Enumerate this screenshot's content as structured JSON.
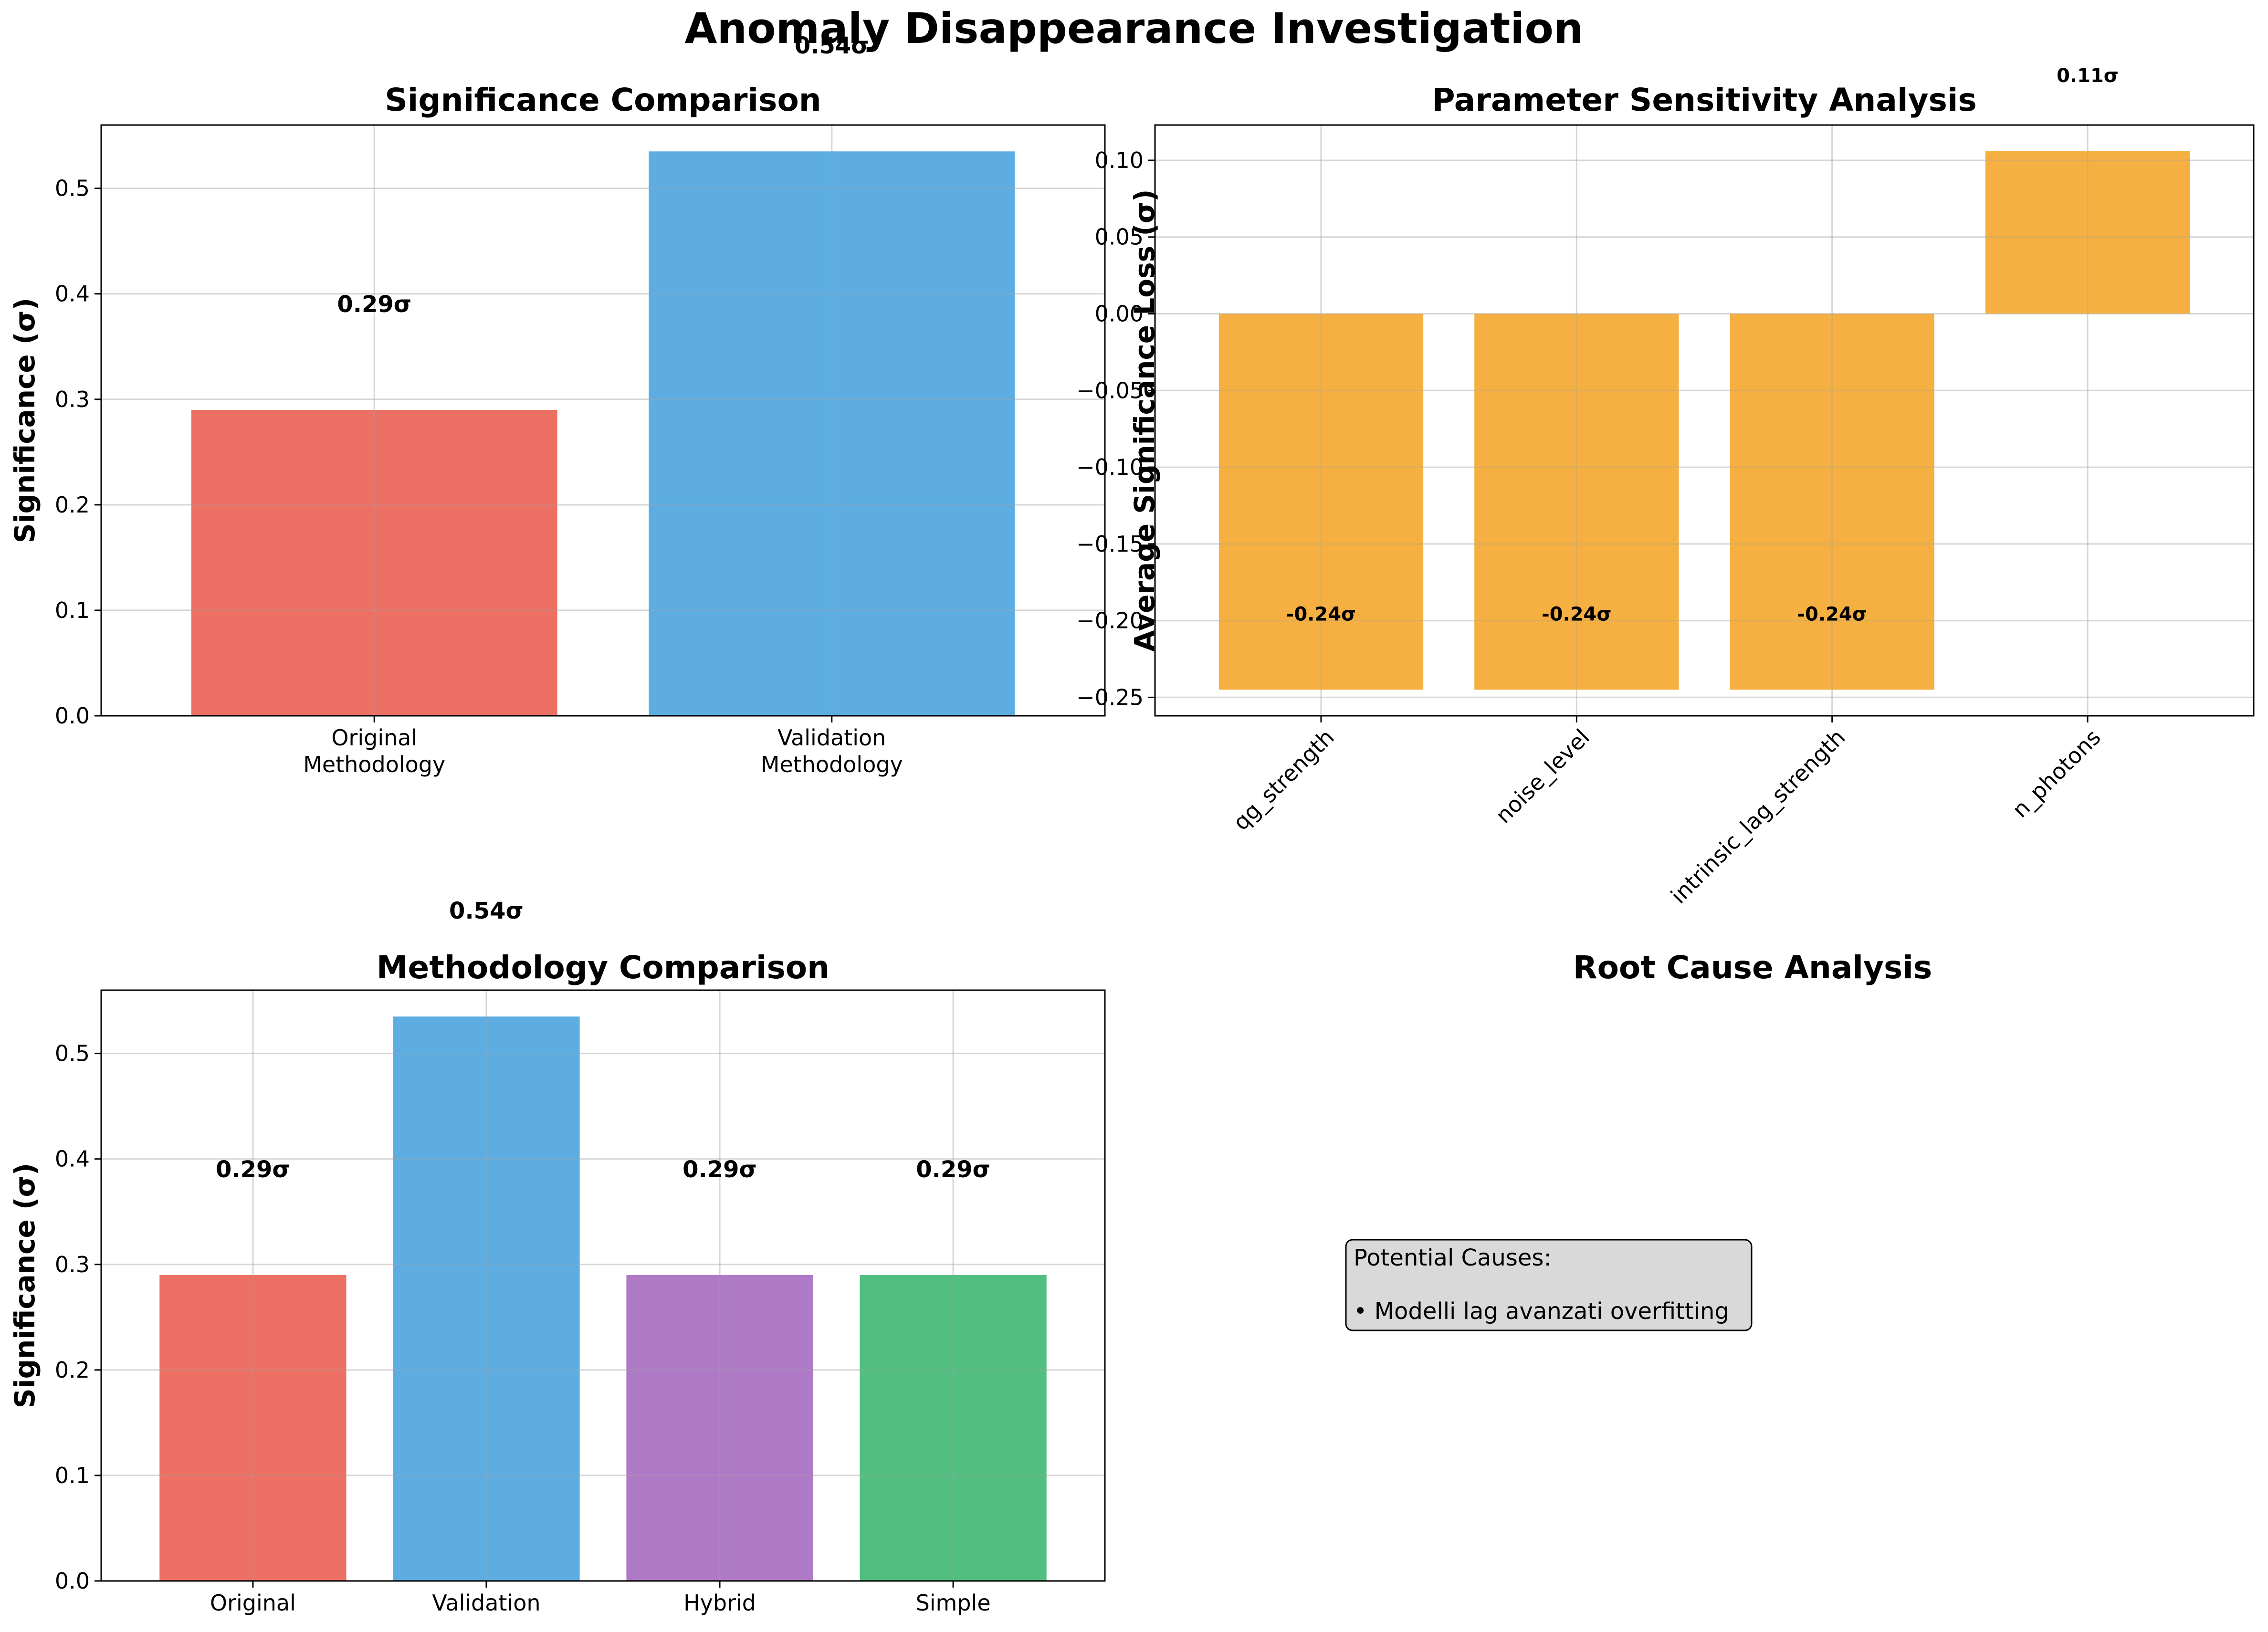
{
  "figure": {
    "title": "Anomaly Disappearance Investigation"
  },
  "chart_data": [
    {
      "id": "significance",
      "type": "bar",
      "title": "Significance Comparison",
      "xlabel": "",
      "ylabel": "Significance (σ)",
      "categories": [
        "Original\nMethodology",
        "Validation\nMethodology"
      ],
      "values": [
        0.29,
        0.535
      ],
      "bar_labels": [
        "0.29σ",
        "0.54σ"
      ],
      "colors": [
        "#e74c3c",
        "#3498db"
      ],
      "ylim": [
        0,
        0.56
      ],
      "yticks": [
        0.0,
        0.1,
        0.2,
        0.3,
        0.4,
        0.5
      ],
      "ytick_labels": [
        "0.0",
        "0.1",
        "0.2",
        "0.3",
        "0.4",
        "0.5"
      ],
      "grid": true
    },
    {
      "id": "sensitivity",
      "type": "bar",
      "title": "Parameter Sensitivity Analysis",
      "xlabel": "",
      "ylabel": "Average Significance Loss (σ)",
      "categories": [
        "qg_strength",
        "noise_level",
        "intrinsic_lag_strength",
        "n_photons"
      ],
      "values": [
        -0.245,
        -0.245,
        -0.245,
        0.106
      ],
      "bar_labels": [
        "-0.24σ",
        "-0.24σ",
        "-0.24σ",
        "0.11σ"
      ],
      "colors": [
        "#f39c12",
        "#f39c12",
        "#f39c12",
        "#f39c12"
      ],
      "ylim": [
        -0.262,
        0.123
      ],
      "yticks": [
        -0.25,
        -0.2,
        -0.15,
        -0.1,
        -0.05,
        0.0,
        0.05,
        0.1
      ],
      "ytick_labels": [
        "−0.25",
        "−0.20",
        "−0.15",
        "−0.10",
        "−0.05",
        "0.00",
        "0.05",
        "0.10"
      ],
      "grid": true
    },
    {
      "id": "methodology",
      "type": "bar",
      "title": "Methodology Comparison",
      "xlabel": "",
      "ylabel": "Significance (σ)",
      "categories": [
        "Original",
        "Validation",
        "Hybrid",
        "Simple"
      ],
      "values": [
        0.29,
        0.535,
        0.29,
        0.29
      ],
      "bar_labels": [
        "0.29σ",
        "0.54σ",
        "0.29σ",
        "0.29σ"
      ],
      "colors": [
        "#e74c3c",
        "#3498db",
        "#9b59b6",
        "#27ae60"
      ],
      "ylim": [
        0,
        0.56
      ],
      "yticks": [
        0.0,
        0.1,
        0.2,
        0.3,
        0.4,
        0.5
      ],
      "ytick_labels": [
        "0.0",
        "0.1",
        "0.2",
        "0.3",
        "0.4",
        "0.5"
      ],
      "grid": true
    }
  ],
  "root_cause": {
    "title": "Root Cause Analysis",
    "lines": [
      "Potential Causes:",
      "",
      "• Modelli lag avanzati overfitting"
    ]
  }
}
